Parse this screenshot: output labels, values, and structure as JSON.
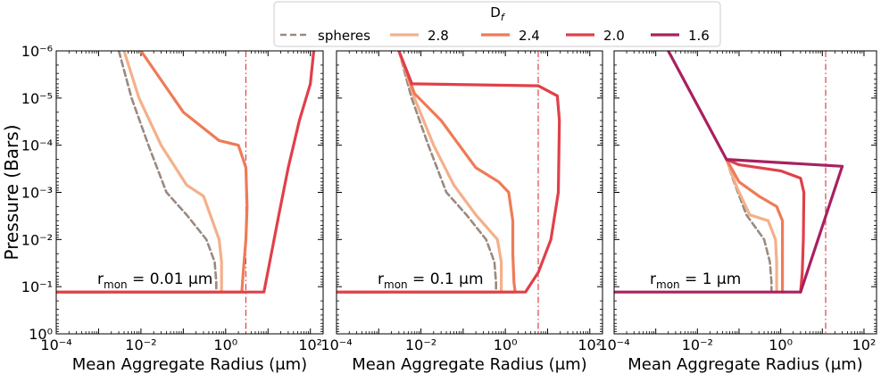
{
  "legend": {
    "title_main": "D",
    "title_sub": "f",
    "entries": [
      {
        "label": "spheres",
        "color": "#9a8a80",
        "dash": true
      },
      {
        "label": "2.8",
        "color": "#f4b08a",
        "dash": false
      },
      {
        "label": "2.4",
        "color": "#ee7b56",
        "dash": false
      },
      {
        "label": "2.0",
        "color": "#e0404a",
        "dash": false
      },
      {
        "label": "1.6",
        "color": "#a8215e",
        "dash": false
      }
    ]
  },
  "chart_data": [
    {
      "type": "line",
      "xlabel": "Mean Aggregate Radius (μm)",
      "ylabel": "Pressure (Bars)",
      "xscale": "log",
      "yscale": "log",
      "xlim": [
        0.0001,
        200
      ],
      "ylim": [
        1,
        1e-06
      ],
      "xticks": [
        "10⁻⁴",
        "10⁻²",
        "10⁰",
        "10²"
      ],
      "yticks": [
        "10⁻⁶",
        "10⁻⁵",
        "10⁻⁴",
        "10⁻³",
        "10⁻²",
        "10⁻¹",
        "10⁰"
      ],
      "annotation": {
        "main": "r",
        "sub": "mon",
        "rest": " = 0.01 μm"
      },
      "vline": 3,
      "series": [
        {
          "name": "spheres",
          "points": [
            [
              0.003,
              1e-06
            ],
            [
              0.006,
              1e-05
            ],
            [
              0.015,
              0.0001
            ],
            [
              0.04,
              0.001
            ],
            [
              0.12,
              0.003
            ],
            [
              0.35,
              0.01
            ],
            [
              0.55,
              0.03
            ],
            [
              0.6,
              0.08
            ],
            [
              0.6,
              0.13
            ],
            [
              0.0001,
              0.13
            ]
          ]
        },
        {
          "name": "2.8",
          "points": [
            [
              0.004,
              1e-06
            ],
            [
              0.009,
              1e-05
            ],
            [
              0.03,
              0.0001
            ],
            [
              0.12,
              0.0007
            ],
            [
              0.3,
              0.0012
            ],
            [
              0.7,
              0.01
            ],
            [
              0.8,
              0.03
            ],
            [
              0.8,
              0.08
            ],
            [
              0.8,
              0.13
            ],
            [
              0.0001,
              0.13
            ]
          ]
        },
        {
          "name": "2.4",
          "points": [
            [
              0.01,
              1e-06
            ],
            [
              0.1,
              2e-05
            ],
            [
              0.7,
              8e-05
            ],
            [
              2,
              0.0001
            ],
            [
              3,
              0.0003
            ],
            [
              3.2,
              0.002
            ],
            [
              3,
              0.01
            ],
            [
              2.6,
              0.05
            ],
            [
              2.4,
              0.13
            ],
            [
              0.0001,
              0.13
            ]
          ]
        },
        {
          "name": "2.0",
          "points": [
            [
              120,
              1e-06
            ],
            [
              100,
              5e-06
            ],
            [
              55,
              3e-05
            ],
            [
              30,
              0.0003
            ],
            [
              18,
              0.003
            ],
            [
              11,
              0.03
            ],
            [
              8,
              0.13
            ],
            [
              0.0001,
              0.13
            ]
          ]
        }
      ]
    },
    {
      "type": "line",
      "xlabel": "Mean Aggregate Radius (μm)",
      "xscale": "log",
      "yscale": "log",
      "xlim": [
        0.0001,
        200
      ],
      "ylim": [
        1,
        1e-06
      ],
      "xticks": [
        "10⁻⁴",
        "10⁻²",
        "10⁰",
        "10²"
      ],
      "annotation": {
        "main": "r",
        "sub": "mon",
        "rest": " = 0.1 μm"
      },
      "vline": 6,
      "series": [
        {
          "name": "spheres",
          "points": [
            [
              0.003,
              1e-06
            ],
            [
              0.006,
              1e-05
            ],
            [
              0.015,
              0.0001
            ],
            [
              0.04,
              0.001
            ],
            [
              0.12,
              0.003
            ],
            [
              0.35,
              0.01
            ],
            [
              0.55,
              0.03
            ],
            [
              0.6,
              0.08
            ],
            [
              0.6,
              0.13
            ],
            [
              0.0001,
              0.13
            ]
          ]
        },
        {
          "name": "2.8",
          "points": [
            [
              0.003,
              1e-06
            ],
            [
              0.007,
              1e-05
            ],
            [
              0.02,
              0.0001
            ],
            [
              0.06,
              0.0007
            ],
            [
              0.2,
              0.003
            ],
            [
              0.65,
              0.01
            ],
            [
              0.8,
              0.03
            ],
            [
              0.8,
              0.08
            ],
            [
              0.8,
              0.13
            ],
            [
              0.0001,
              0.13
            ]
          ]
        },
        {
          "name": "2.4",
          "points": [
            [
              0.003,
              1e-06
            ],
            [
              0.007,
              8e-06
            ],
            [
              0.03,
              3e-05
            ],
            [
              0.2,
              0.0003
            ],
            [
              0.7,
              0.0006
            ],
            [
              1.2,
              0.001
            ],
            [
              1.5,
              0.004
            ],
            [
              1.5,
              0.02
            ],
            [
              1.6,
              0.08
            ],
            [
              1.7,
              0.13
            ],
            [
              0.0001,
              0.13
            ]
          ]
        },
        {
          "name": "2.0",
          "points": [
            [
              0.003,
              1e-06
            ],
            [
              0.006,
              4.8e-06
            ],
            [
              0.006,
              5e-06
            ],
            [
              6,
              5.5e-06
            ],
            [
              17,
              9e-06
            ],
            [
              19,
              3e-05
            ],
            [
              18,
              0.001
            ],
            [
              12,
              0.01
            ],
            [
              6,
              0.05
            ],
            [
              3,
              0.13
            ],
            [
              0.0001,
              0.13
            ]
          ]
        }
      ]
    },
    {
      "type": "line",
      "xlabel": "Mean Aggregate Radius (μm)",
      "xscale": "log",
      "yscale": "log",
      "xlim": [
        0.0001,
        200
      ],
      "ylim": [
        1,
        1e-06
      ],
      "xticks": [
        "10⁻⁴",
        "10⁻²",
        "10⁰",
        "10²"
      ],
      "annotation": {
        "main": "r",
        "sub": "mon",
        "rest": " = 1 μm"
      },
      "vline": 12,
      "series": [
        {
          "name": "spheres",
          "points": [
            [
              0.05,
              0.0002
            ],
            [
              0.07,
              0.0005
            ],
            [
              0.15,
              0.003
            ],
            [
              0.4,
              0.01
            ],
            [
              0.55,
              0.03
            ],
            [
              0.6,
              0.08
            ],
            [
              0.6,
              0.13
            ]
          ]
        },
        {
          "name": "2.8",
          "points": [
            [
              0.05,
              0.0002
            ],
            [
              0.09,
              0.0008
            ],
            [
              0.18,
              0.003
            ],
            [
              0.5,
              0.004
            ],
            [
              0.75,
              0.01
            ],
            [
              0.8,
              0.03
            ],
            [
              0.8,
              0.08
            ],
            [
              0.8,
              0.13
            ]
          ]
        },
        {
          "name": "2.4",
          "points": [
            [
              0.05,
              0.0002
            ],
            [
              0.1,
              0.0006
            ],
            [
              0.3,
              0.0012
            ],
            [
              0.8,
              0.002
            ],
            [
              1.1,
              0.004
            ],
            [
              1.1,
              0.02
            ],
            [
              1.1,
              0.08
            ],
            [
              1.1,
              0.13
            ]
          ]
        },
        {
          "name": "2.0",
          "points": [
            [
              0.05,
              0.0002
            ],
            [
              0.1,
              0.00026
            ],
            [
              1,
              0.00035
            ],
            [
              3,
              0.0005
            ],
            [
              3.6,
              0.001
            ],
            [
              3.5,
              0.01
            ],
            [
              3.3,
              0.05
            ],
            [
              3,
              0.13
            ]
          ]
        },
        {
          "name": "1.6",
          "points": [
            [
              0.002,
              1e-06
            ],
            [
              0.05,
              0.0002
            ],
            [
              30,
              0.00028
            ],
            [
              3,
              0.13
            ],
            [
              0.0001,
              0.13
            ]
          ]
        }
      ]
    }
  ]
}
